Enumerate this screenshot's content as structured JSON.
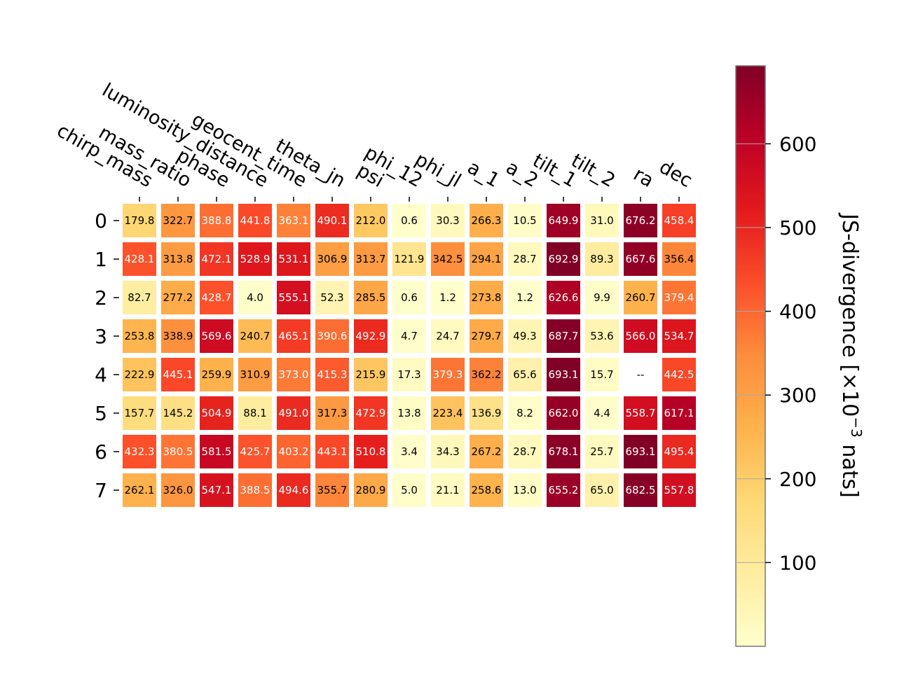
{
  "chart_data": {
    "type": "heatmap",
    "columns": [
      "chirp_mass",
      "mass_ratio",
      "phase",
      "luminosity_distance",
      "geocent_time",
      "theta_jn",
      "psi",
      "phi_12",
      "phi_jl",
      "a_1",
      "a_2",
      "tilt_1",
      "tilt_2",
      "ra",
      "dec"
    ],
    "rows": [
      "0",
      "1",
      "2",
      "3",
      "4",
      "5",
      "6",
      "7"
    ],
    "values": [
      [
        179.8,
        322.7,
        388.8,
        441.8,
        363.1,
        490.1,
        212.0,
        0.6,
        30.3,
        266.3,
        10.5,
        649.9,
        31.0,
        676.2,
        458.4
      ],
      [
        428.1,
        313.8,
        472.1,
        528.9,
        531.1,
        306.9,
        313.7,
        121.9,
        342.5,
        294.1,
        28.7,
        692.9,
        89.3,
        667.6,
        356.4
      ],
      [
        82.7,
        277.2,
        428.7,
        4.0,
        555.1,
        52.3,
        285.5,
        0.6,
        1.2,
        273.8,
        1.2,
        626.6,
        9.9,
        260.7,
        379.4
      ],
      [
        253.8,
        338.9,
        569.6,
        240.7,
        465.1,
        390.6,
        492.9,
        4.7,
        24.7,
        279.7,
        49.3,
        687.7,
        53.6,
        566.0,
        534.7
      ],
      [
        222.9,
        445.1,
        259.9,
        310.9,
        373.0,
        415.3,
        215.9,
        17.3,
        379.3,
        362.2,
        65.6,
        693.1,
        15.7,
        null,
        442.5
      ],
      [
        157.7,
        145.2,
        504.9,
        88.1,
        491.0,
        317.3,
        472.9,
        13.8,
        223.4,
        136.9,
        8.2,
        662.0,
        4.4,
        558.7,
        617.1
      ],
      [
        432.3,
        380.5,
        581.5,
        425.7,
        403.2,
        443.1,
        510.8,
        3.4,
        34.3,
        267.2,
        28.7,
        678.1,
        25.7,
        693.1,
        495.4
      ],
      [
        262.1,
        326.0,
        547.1,
        388.5,
        494.6,
        355.7,
        280.9,
        5.0,
        21.1,
        258.6,
        13.0,
        655.2,
        65.0,
        682.5,
        557.8
      ]
    ],
    "missing_label": "--",
    "colorbar": {
      "label_prefix": "JS-divergence [×10",
      "label_exponent": "−3",
      "label_suffix": " nats]",
      "ticks": [
        100,
        200,
        300,
        400,
        500,
        600
      ],
      "range": [
        0,
        693.1
      ],
      "colormap": "YlOrRd",
      "colormap_stops": [
        "#ffffcc",
        "#ffeda0",
        "#fed976",
        "#feb24c",
        "#fd8d3c",
        "#fc4e2a",
        "#e31a1c",
        "#bd0026",
        "#800026"
      ]
    }
  }
}
